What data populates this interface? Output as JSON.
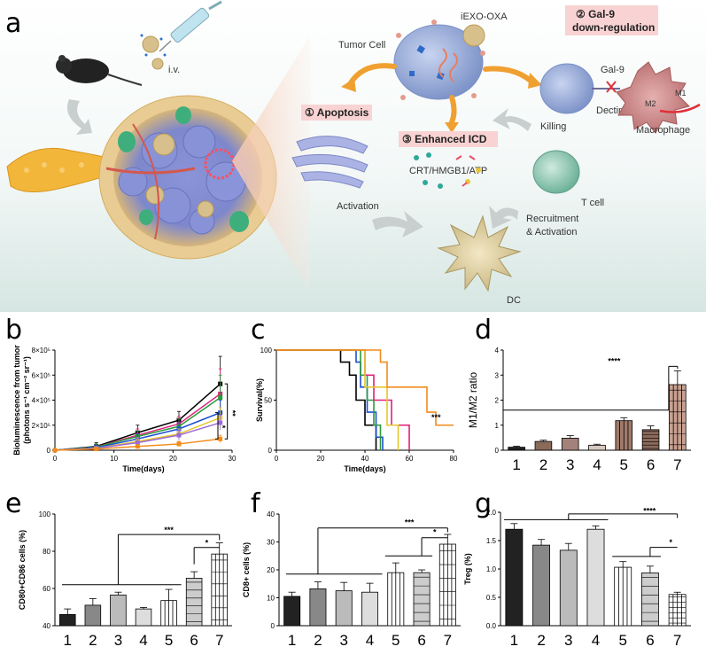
{
  "figure": {
    "panels": [
      "a",
      "b",
      "c",
      "d",
      "e",
      "f",
      "g"
    ]
  },
  "schematic": {
    "inject_label": "i.v.",
    "drug_label": "iEXO-OXA",
    "tumor_cell_label": "Tumor Cell",
    "apoptosis_label": "① Apoptosis",
    "gal9_label_line1": "② Gal-9",
    "gal9_label_line2": "down-regulation",
    "icd_label": "③ Enhanced ICD",
    "icd_markers": "CRT/HMGB1/ATP",
    "gal9_molecule": "Gal-9",
    "dectin_label": "Dectin 1",
    "m1_label": "M1",
    "m2_label": "M2",
    "macrophage_label": "Macrophage",
    "killing_label": "Killing",
    "tcell_label": "T cell",
    "activation_label": "Activation",
    "recruitment_line1": "Recruitment",
    "recruitment_line2": "& Activation",
    "dc_label": "DC",
    "colors": {
      "background_bottom": "#dde9e6",
      "arrow": "#f0a030",
      "label_box": "#f9d3d3"
    }
  },
  "chart_data": [
    {
      "panel": "b",
      "type": "line",
      "xlabel": "Time(days)",
      "ylabel_line1": "Bioluminescence from tumor",
      "ylabel_line2": "(photons s⁻¹ cm⁻² sr⁻¹)",
      "xlim": [
        0,
        30
      ],
      "ylim": [
        0,
        800000
      ],
      "xticks": [
        "0",
        "10",
        "20",
        "30"
      ],
      "yticks": [
        "0",
        "2×10⁵",
        "4×10⁵",
        "6×10⁵",
        "8×10⁵"
      ],
      "x": [
        0,
        7,
        14,
        21,
        28
      ],
      "series": [
        {
          "color": "#000000",
          "values": [
            0,
            30000,
            140000,
            240000,
            530000
          ],
          "err": [
            0,
            30000,
            60000,
            70000,
            220000
          ]
        },
        {
          "color": "#e0207a",
          "values": [
            0,
            25000,
            120000,
            210000,
            450000
          ],
          "err": [
            0,
            25000,
            50000,
            60000,
            200000
          ]
        },
        {
          "color": "#2a9d3a",
          "values": [
            0,
            25000,
            110000,
            190000,
            420000
          ],
          "err": [
            0,
            25000,
            40000,
            60000,
            180000
          ]
        },
        {
          "color": "#1e4fd0",
          "values": [
            0,
            20000,
            90000,
            170000,
            300000
          ],
          "err": [
            0,
            20000,
            40000,
            50000,
            100000
          ]
        },
        {
          "color": "#e6c62e",
          "values": [
            0,
            15000,
            70000,
            130000,
            260000
          ],
          "err": [
            0,
            15000,
            30000,
            40000,
            80000
          ]
        },
        {
          "color": "#9c6ad8",
          "values": [
            0,
            15000,
            60000,
            120000,
            220000
          ],
          "err": [
            0,
            15000,
            30000,
            40000,
            60000
          ]
        },
        {
          "color": "#f28c1c",
          "values": [
            0,
            10000,
            30000,
            50000,
            90000
          ],
          "err": [
            0,
            10000,
            15000,
            20000,
            30000
          ]
        }
      ],
      "significance": [
        "**",
        "*"
      ]
    },
    {
      "panel": "c",
      "type": "line",
      "xlabel": "Time(days)",
      "ylabel": "Survival(%)",
      "xlim": [
        0,
        80
      ],
      "ylim": [
        0,
        100
      ],
      "xticks": [
        "0",
        "20",
        "40",
        "60",
        "80"
      ],
      "yticks": [
        "0",
        "50",
        "100"
      ],
      "series": [
        {
          "color": "#000000",
          "steps": [
            [
              0,
              100
            ],
            [
              29,
              100
            ],
            [
              29,
              88
            ],
            [
              33,
              88
            ],
            [
              33,
              75
            ],
            [
              36,
              75
            ],
            [
              36,
              50
            ],
            [
              40,
              50
            ],
            [
              40,
              25
            ],
            [
              45,
              25
            ],
            [
              45,
              0
            ]
          ]
        },
        {
          "color": "#1e4fd0",
          "steps": [
            [
              0,
              100
            ],
            [
              36,
              100
            ],
            [
              36,
              88
            ],
            [
              38,
              88
            ],
            [
              38,
              63
            ],
            [
              41,
              63
            ],
            [
              41,
              38
            ],
            [
              45,
              38
            ],
            [
              45,
              13
            ],
            [
              48,
              13
            ],
            [
              48,
              0
            ]
          ]
        },
        {
          "color": "#2a9d3a",
          "steps": [
            [
              0,
              100
            ],
            [
              38,
              100
            ],
            [
              38,
              75
            ],
            [
              41,
              75
            ],
            [
              41,
              50
            ],
            [
              44,
              50
            ],
            [
              44,
              25
            ],
            [
              47,
              25
            ],
            [
              47,
              0
            ]
          ]
        },
        {
          "color": "#e0207a",
          "steps": [
            [
              0,
              100
            ],
            [
              40,
              100
            ],
            [
              40,
              75
            ],
            [
              44,
              75
            ],
            [
              44,
              50
            ],
            [
              52,
              50
            ],
            [
              52,
              25
            ],
            [
              60,
              25
            ],
            [
              60,
              0
            ]
          ]
        },
        {
          "color": "#e6c62e",
          "steps": [
            [
              0,
              100
            ],
            [
              40,
              100
            ],
            [
              40,
              63
            ],
            [
              50,
              63
            ],
            [
              50,
              25
            ],
            [
              55,
              25
            ],
            [
              55,
              0
            ]
          ]
        },
        {
          "color": "#f28c1c",
          "steps": [
            [
              0,
              100
            ],
            [
              47,
              100
            ],
            [
              47,
              88
            ],
            [
              50,
              88
            ],
            [
              50,
              63
            ],
            [
              68,
              63
            ],
            [
              68,
              38
            ],
            [
              72,
              38
            ],
            [
              72,
              25
            ],
            [
              80,
              25
            ]
          ]
        }
      ],
      "significance": [
        "***"
      ]
    },
    {
      "panel": "d",
      "type": "bar",
      "ylabel": "M1/M2 ratio",
      "ylim": [
        0,
        4
      ],
      "yticks": [
        "0",
        "1",
        "2",
        "3",
        "4"
      ],
      "categories": [
        "1",
        "2",
        "3",
        "4",
        "5",
        "6",
        "7"
      ],
      "values": [
        0.12,
        0.35,
        0.48,
        0.2,
        1.18,
        0.82,
        2.62
      ],
      "errors": [
        0.04,
        0.05,
        0.1,
        0.04,
        0.12,
        0.15,
        0.55
      ],
      "significance": [
        "****"
      ]
    },
    {
      "panel": "e",
      "type": "bar",
      "ylabel": "CD80+CD86 cells (%)",
      "ylim": [
        40,
        100
      ],
      "yticks": [
        "40",
        "60",
        "80",
        "100"
      ],
      "categories": [
        "1",
        "2",
        "3",
        "4",
        "5",
        "6",
        "7"
      ],
      "values": [
        46,
        51,
        56.5,
        49,
        53.5,
        65.5,
        78.5
      ],
      "errors": [
        3,
        3.5,
        1.5,
        0.8,
        6,
        3.5,
        6
      ],
      "significance": [
        "***",
        "*"
      ]
    },
    {
      "panel": "f",
      "type": "bar",
      "ylabel": "CD8+ cells (%)",
      "ylim": [
        0,
        40
      ],
      "yticks": [
        "0",
        "10",
        "20",
        "30",
        "40"
      ],
      "categories": [
        "1",
        "2",
        "3",
        "4",
        "5",
        "6",
        "7"
      ],
      "values": [
        10.5,
        13.2,
        12.5,
        12,
        19,
        19,
        29.2
      ],
      "errors": [
        1.5,
        2.5,
        3,
        3.2,
        3.5,
        1,
        3.5
      ],
      "significance": [
        "***",
        "*"
      ]
    },
    {
      "panel": "g",
      "type": "bar",
      "ylabel": "Treg (%)",
      "ylim": [
        0,
        2.0
      ],
      "yticks": [
        "0.0",
        "0.5",
        "1.0",
        "1.5",
        "2.0"
      ],
      "categories": [
        "1",
        "2",
        "3",
        "4",
        "5",
        "6",
        "7"
      ],
      "values": [
        1.7,
        1.42,
        1.33,
        1.7,
        1.03,
        0.93,
        0.55
      ],
      "errors": [
        0.1,
        0.1,
        0.12,
        0.06,
        0.1,
        0.12,
        0.04
      ],
      "significance": [
        "****",
        "*"
      ]
    }
  ]
}
